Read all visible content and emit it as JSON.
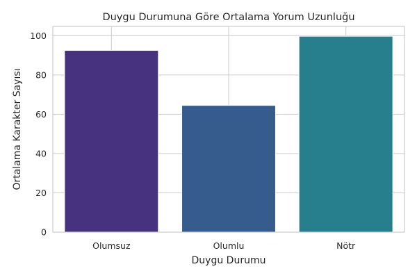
{
  "chart_data": {
    "type": "bar",
    "title": "Duygu Durumuna Göre Ortalama Yorum Uzunluğu",
    "xlabel": "Duygu Durumu",
    "ylabel": "Ortalama Karakter Sayısı",
    "categories": [
      "Olumsuz",
      "Olumlu",
      "Nötr"
    ],
    "values": [
      92.5,
      64.5,
      99.7
    ],
    "colors": [
      "#46327e",
      "#365c8d",
      "#277f8e"
    ],
    "ylim": [
      0,
      104.7
    ],
    "yticks": [
      0,
      20,
      40,
      60,
      80,
      100
    ],
    "grid": true,
    "legend": "none"
  }
}
